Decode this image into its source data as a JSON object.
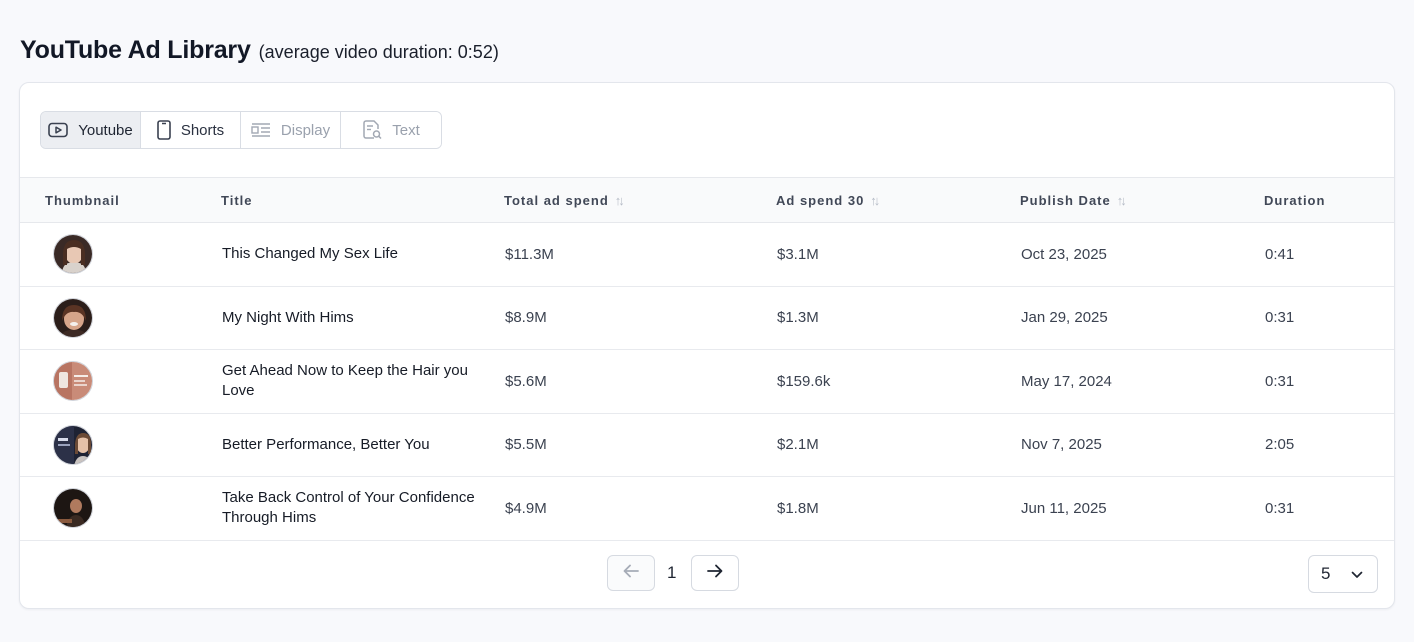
{
  "header": {
    "title": "YouTube Ad Library",
    "subtitle": "(average video duration: 0:52)"
  },
  "tabs": [
    {
      "label": "Youtube",
      "icon": "play-video-icon",
      "state": "active"
    },
    {
      "label": "Shorts",
      "icon": "phone-icon",
      "state": "normal"
    },
    {
      "label": "Display",
      "icon": "display-layout-icon",
      "state": "disabled"
    },
    {
      "label": "Text",
      "icon": "document-search-icon",
      "state": "disabled"
    }
  ],
  "table": {
    "columns": {
      "thumbnail": "Thumbnail",
      "title": "Title",
      "total_spend": "Total ad spend",
      "spend_30": "Ad spend 30",
      "publish_date": "Publish Date",
      "duration": "Duration"
    },
    "rows": [
      {
        "title": "This Changed My Sex Life",
        "total_spend": "$11.3M",
        "spend_30": "$3.1M",
        "publish_date": "Oct 23, 2025",
        "duration": "0:41"
      },
      {
        "title": "My Night With Hims",
        "total_spend": "$8.9M",
        "spend_30": "$1.3M",
        "publish_date": "Jan 29, 2025",
        "duration": "0:31"
      },
      {
        "title": "Get Ahead Now to Keep the Hair you Love",
        "total_spend": "$5.6M",
        "spend_30": "$159.6k",
        "publish_date": "May 17, 2024",
        "duration": "0:31"
      },
      {
        "title": "Better Performance, Better You",
        "total_spend": "$5.5M",
        "spend_30": "$2.1M",
        "publish_date": "Nov 7, 2025",
        "duration": "2:05"
      },
      {
        "title": "Take Back Control of Your Confidence Through Hims",
        "total_spend": "$4.9M",
        "spend_30": "$1.8M",
        "publish_date": "Jun 11, 2025",
        "duration": "0:31"
      }
    ]
  },
  "pagination": {
    "current_page": "1",
    "page_size": "5"
  },
  "colors": {
    "accent_bg": "#eceef2",
    "border": "#e3e6ec",
    "page_bg": "#f8f9fc"
  }
}
